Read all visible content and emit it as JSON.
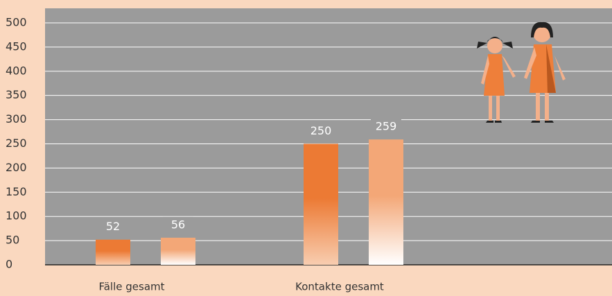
{
  "chart_data": {
    "type": "bar",
    "categories": [
      "Fälle gesamt",
      "Kontakte gesamt"
    ],
    "series": [
      {
        "color": "#ec7a34",
        "values": [
          52,
          250
        ]
      },
      {
        "color": "#f3a777",
        "values": [
          56,
          259
        ]
      }
    ],
    "ylim": [
      0,
      530
    ],
    "yticks": [
      0,
      50,
      100,
      150,
      200,
      250,
      300,
      350,
      400,
      450,
      500
    ],
    "grid": true
  }
}
